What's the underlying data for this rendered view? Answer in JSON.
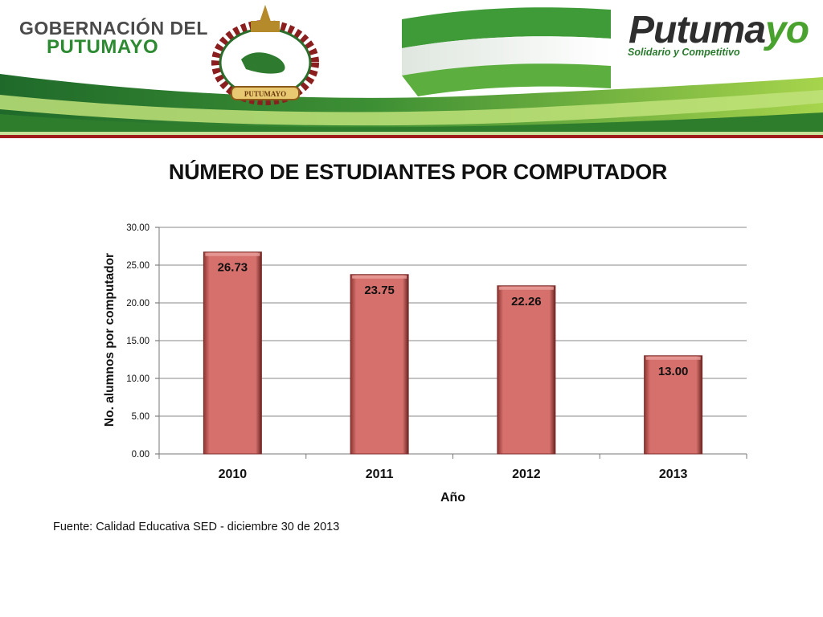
{
  "header": {
    "gov_line1": "GOBERNACIÓN DEL",
    "gov_line2": "PUTUMAYO",
    "brand_main": "Putuma",
    "brand_accent": "yo",
    "brand_tagline": "Solidario y Competitivo",
    "crest_ribbon": "PUTUMAYO"
  },
  "colors": {
    "bar_fill": "#d5706c",
    "bar_edge": "#7a2a28",
    "grid": "#8a8a8a",
    "header_green": "#5aa832",
    "header_light_green": "#a7d44c",
    "header_dark_green": "#1f6a2a"
  },
  "chart_data": {
    "type": "bar",
    "title": "NÚMERO DE ESTUDIANTES POR COMPUTADOR",
    "xlabel": "Año",
    "ylabel": "No. alumnos por computador",
    "categories": [
      "2010",
      "2011",
      "2012",
      "2013"
    ],
    "values": [
      26.73,
      23.75,
      22.26,
      13.0
    ],
    "value_labels": [
      "26.73",
      "23.75",
      "22.26",
      "13.00"
    ],
    "yticks": [
      "0.00",
      "5.00",
      "10.00",
      "15.00",
      "20.00",
      "25.00",
      "30.00"
    ],
    "ylim": [
      0,
      30
    ],
    "grid": true,
    "legend": "none"
  },
  "footer": {
    "source": "Fuente: Calidad Educativa SED - diciembre 30 de 2013"
  }
}
